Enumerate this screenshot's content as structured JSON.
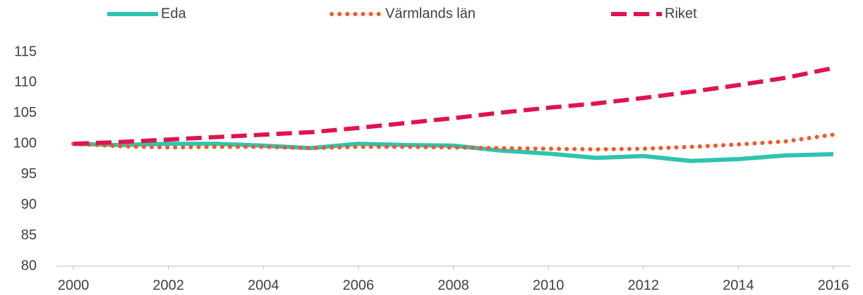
{
  "chart_data": {
    "type": "line",
    "x": [
      2000,
      2001,
      2002,
      2003,
      2004,
      2005,
      2006,
      2007,
      2008,
      2009,
      2010,
      2011,
      2012,
      2013,
      2014,
      2015,
      2016
    ],
    "series": [
      {
        "name": "Eda",
        "color": "#2ec4b0",
        "dash": "solid",
        "values": [
          100,
          99.8,
          100,
          100,
          99.7,
          99.3,
          100,
          99.8,
          99.7,
          98.9,
          98.4,
          97.7,
          98,
          97.2,
          97.5,
          98.1,
          98.3
        ]
      },
      {
        "name": "Värmlands län",
        "color": "#f05a28",
        "dash": "dotted",
        "values": [
          100,
          99.6,
          99.4,
          99.5,
          99.5,
          99.3,
          99.5,
          99.5,
          99.4,
          99.3,
          99.2,
          99.1,
          99.2,
          99.5,
          99.9,
          100.4,
          101.5
        ]
      },
      {
        "name": "Riket",
        "color": "#e0144c",
        "dash": "dashed",
        "values": [
          100,
          100.3,
          100.7,
          101.1,
          101.5,
          101.9,
          102.6,
          103.4,
          104.2,
          105.1,
          105.9,
          106.6,
          107.5,
          108.5,
          109.6,
          110.8,
          112.4
        ]
      }
    ],
    "xlim": [
      2000,
      2016
    ],
    "xticks": [
      2000,
      2002,
      2004,
      2006,
      2008,
      2010,
      2012,
      2014,
      2016
    ],
    "ylim": [
      80,
      115
    ],
    "yticks": [
      80,
      85,
      90,
      95,
      100,
      105,
      110,
      115
    ],
    "grid": false,
    "legend": "top"
  }
}
